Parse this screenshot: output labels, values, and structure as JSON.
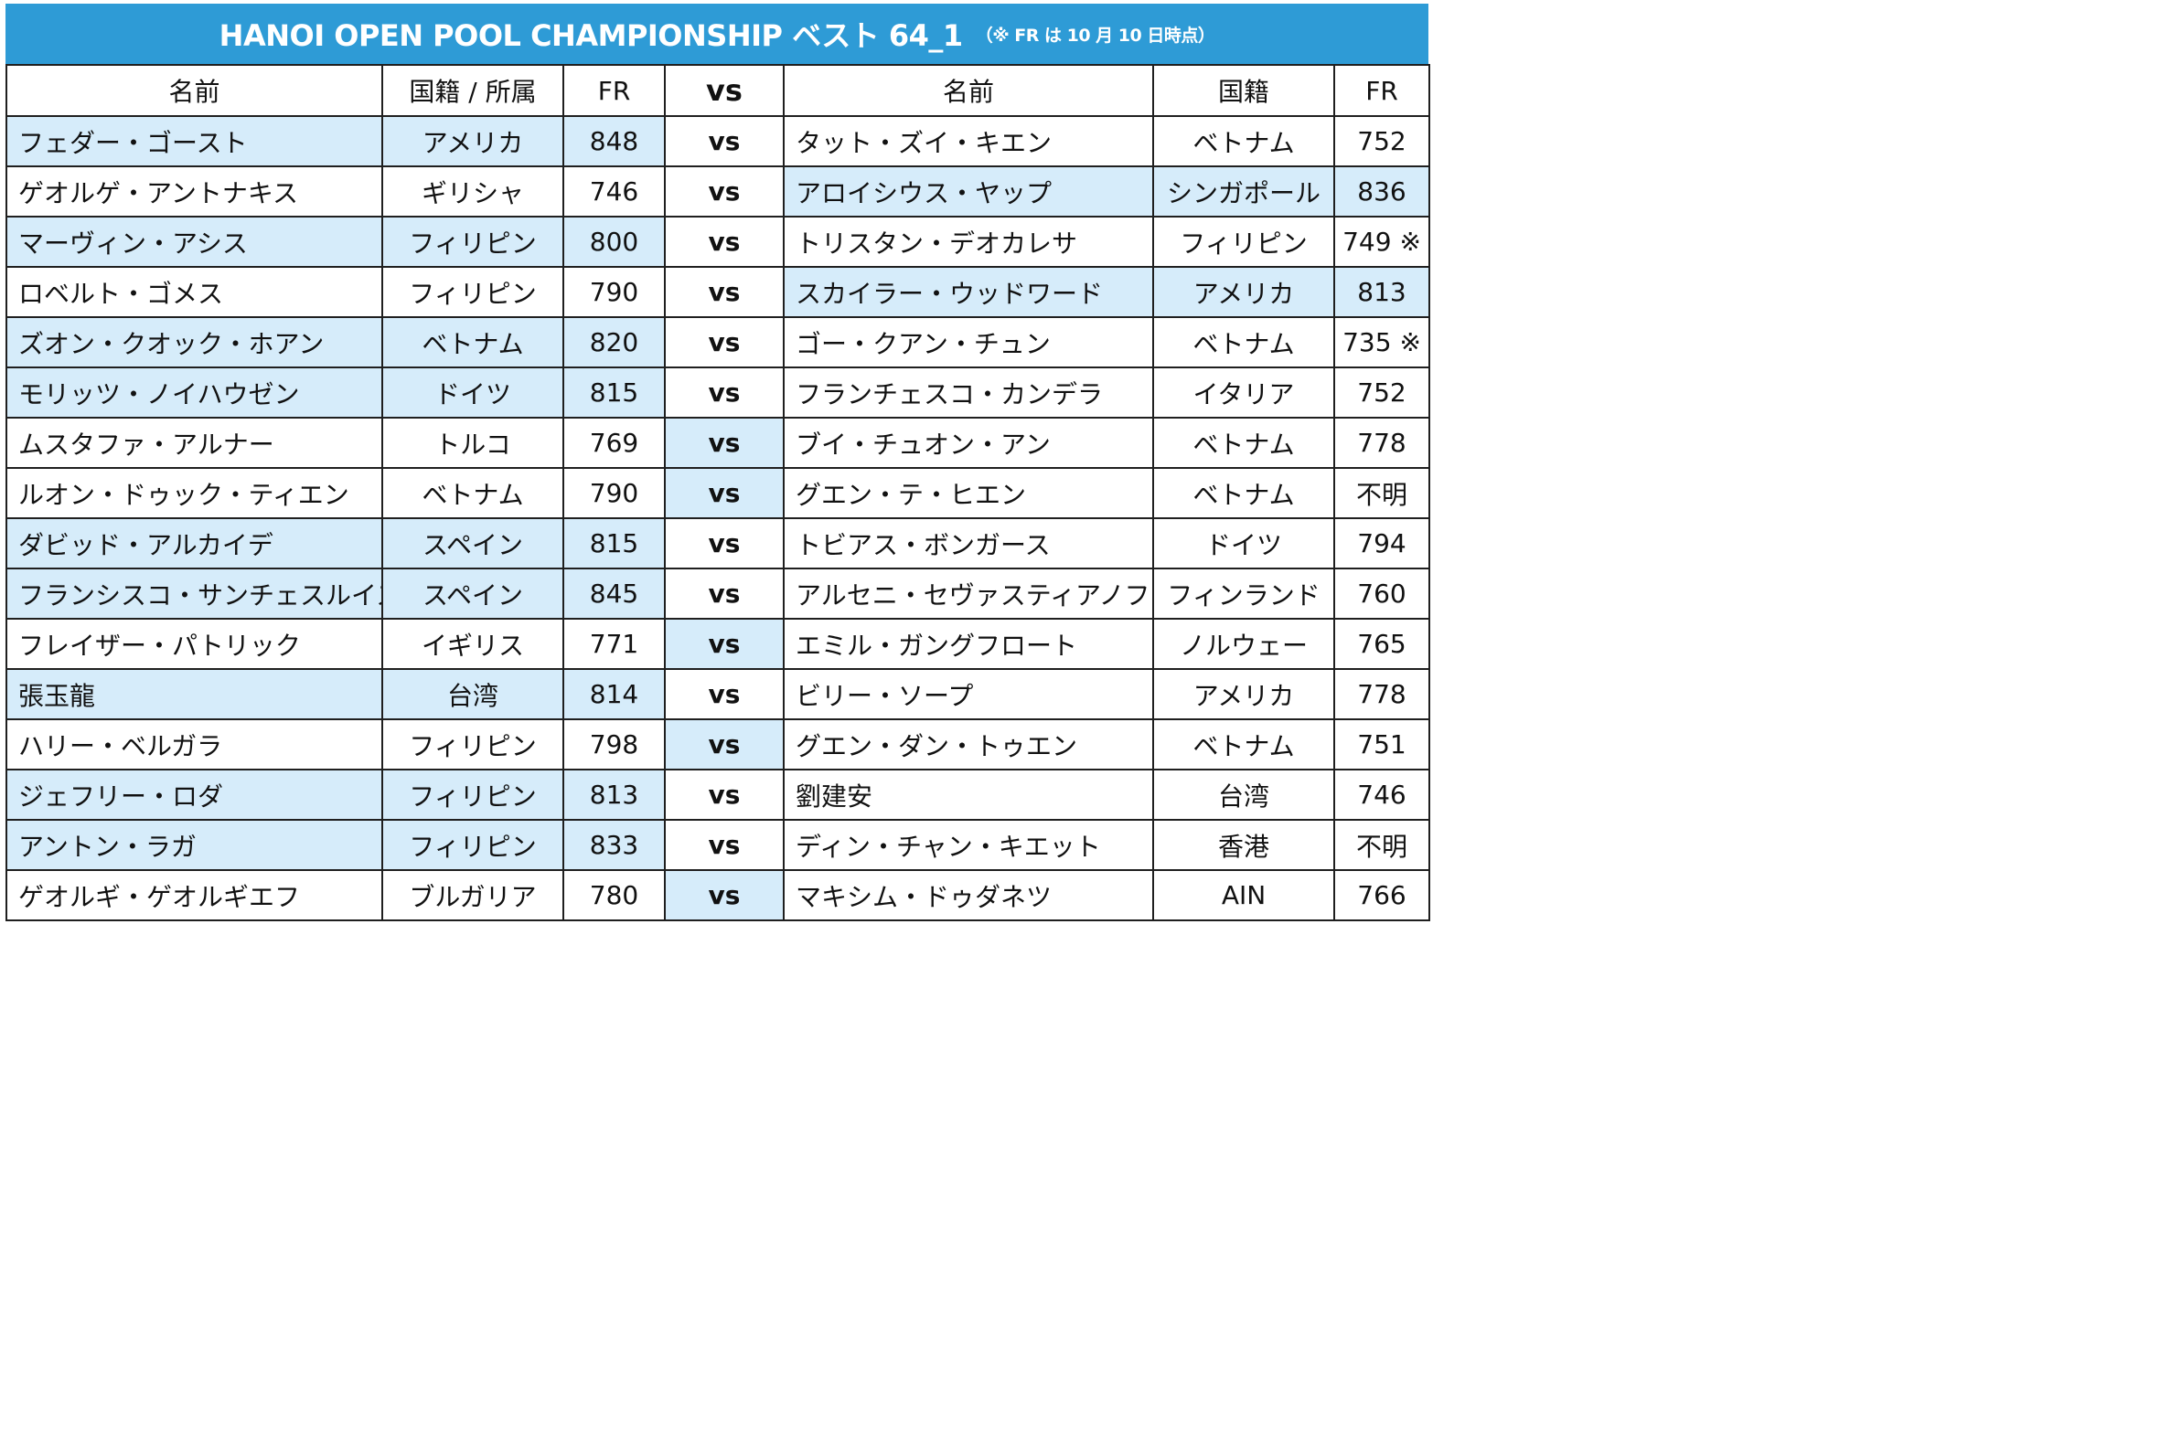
{
  "title": {
    "main": "HANOI OPEN POOL CHAMPIONSHIP ベスト 64_1",
    "note": "（※ FR は 10 月 10 日時点）"
  },
  "colors": {
    "header_bg": "#2e9bd6",
    "highlight": "#d6ecfa",
    "border": "#1f1f1f"
  },
  "headers": {
    "left_name": "名前",
    "left_country": "国籍 / 所属",
    "left_fr": "FR",
    "vs": "vs",
    "right_name": "名前",
    "right_country": "国籍",
    "right_fr": "FR"
  },
  "rows": [
    {
      "l_name": "フェダー・ゴースト",
      "l_country": "アメリカ",
      "l_fr": "848",
      "vs": "vs",
      "r_name": "タット・ズイ・キエン",
      "r_country": "ベトナム",
      "r_fr": "752",
      "winner": "left"
    },
    {
      "l_name": "ゲオルゲ・アントナキス",
      "l_country": "ギリシャ",
      "l_fr": "746",
      "vs": "vs",
      "r_name": "アロイシウス・ヤップ",
      "r_country": "シンガポール",
      "r_fr": "836",
      "winner": "right"
    },
    {
      "l_name": "マーヴィン・アシス",
      "l_country": "フィリピン",
      "l_fr": "800",
      "vs": "vs",
      "r_name": "トリスタン・デオカレサ",
      "r_country": "フィリピン",
      "r_fr": "749 ※",
      "winner": "left"
    },
    {
      "l_name": "ロベルト・ゴメス",
      "l_country": "フィリピン",
      "l_fr": "790",
      "vs": "vs",
      "r_name": "スカイラー・ウッドワード",
      "r_country": "アメリカ",
      "r_fr": "813",
      "winner": "right"
    },
    {
      "l_name": "ズオン・クオック・ホアン",
      "l_country": "ベトナム",
      "l_fr": "820",
      "vs": "vs",
      "r_name": "ゴー・クアン・チュン",
      "r_country": "ベトナム",
      "r_fr": "735 ※",
      "winner": "left"
    },
    {
      "l_name": "モリッツ・ノイハウゼン",
      "l_country": "ドイツ",
      "l_fr": "815",
      "vs": "vs",
      "r_name": "フランチェスコ・カンデラ",
      "r_country": "イタリア",
      "r_fr": "752",
      "winner": "left"
    },
    {
      "l_name": "ムスタファ・アルナー",
      "l_country": "トルコ",
      "l_fr": "769",
      "vs": "vs",
      "r_name": "ブイ・チュオン・アン",
      "r_country": "ベトナム",
      "r_fr": "778",
      "winner": "none"
    },
    {
      "l_name": "ルオン・ドゥック・ティエン",
      "l_country": "ベトナム",
      "l_fr": "790",
      "vs": "vs",
      "r_name": "グエン・テ・ヒエン",
      "r_country": "ベトナム",
      "r_fr": "不明",
      "winner": "none"
    },
    {
      "l_name": "ダビッド・アルカイデ",
      "l_country": "スペイン",
      "l_fr": "815",
      "vs": "vs",
      "r_name": "トビアス・ボンガース",
      "r_country": "ドイツ",
      "r_fr": "794",
      "winner": "left"
    },
    {
      "l_name": "フランシスコ・サンチェスルイス",
      "l_country": "スペイン",
      "l_fr": "845",
      "vs": "vs",
      "r_name": "アルセニ・セヴァスティアノフ",
      "r_country": "フィンランド",
      "r_fr": "760",
      "winner": "left"
    },
    {
      "l_name": "フレイザー・パトリック",
      "l_country": "イギリス",
      "l_fr": "771",
      "vs": "vs",
      "r_name": "エミル・ガングフロート",
      "r_country": "ノルウェー",
      "r_fr": "765",
      "winner": "none"
    },
    {
      "l_name": "張玉龍",
      "l_country": "台湾",
      "l_fr": "814",
      "vs": "vs",
      "r_name": "ビリー・ソープ",
      "r_country": "アメリカ",
      "r_fr": "778",
      "winner": "left"
    },
    {
      "l_name": "ハリー・ベルガラ",
      "l_country": "フィリピン",
      "l_fr": "798",
      "vs": "vs",
      "r_name": "グエン・ダン・トゥエン",
      "r_country": "ベトナム",
      "r_fr": "751",
      "winner": "none"
    },
    {
      "l_name": "ジェフリー・ロダ",
      "l_country": "フィリピン",
      "l_fr": "813",
      "vs": "vs",
      "r_name": "劉建安",
      "r_country": "台湾",
      "r_fr": "746",
      "winner": "left"
    },
    {
      "l_name": "アントン・ラガ",
      "l_country": "フィリピン",
      "l_fr": "833",
      "vs": "vs",
      "r_name": "ディン・チャン・キエット",
      "r_country": "香港",
      "r_fr": "不明",
      "winner": "left"
    },
    {
      "l_name": "ゲオルギ・ゲオルギエフ",
      "l_country": "ブルガリア",
      "l_fr": "780",
      "vs": "vs",
      "r_name": "マキシム・ドゥダネツ",
      "r_country": "AIN",
      "r_fr": "766",
      "winner": "none"
    }
  ]
}
